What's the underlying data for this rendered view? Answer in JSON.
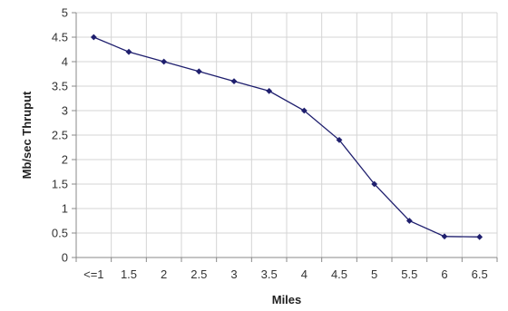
{
  "chart_data": {
    "type": "line",
    "title": "",
    "xlabel": "Miles",
    "ylabel": "Mb/sec Thruput",
    "categories": [
      "<=1",
      "1.5",
      "2",
      "2.5",
      "3",
      "3.5",
      "4",
      "4.5",
      "5",
      "5.5",
      "6",
      "6.5"
    ],
    "series": [
      {
        "values": [
          4.5,
          4.2,
          4.0,
          3.8,
          3.6,
          3.4,
          3.0,
          2.4,
          1.5,
          0.75,
          0.43,
          0.42
        ]
      }
    ],
    "ylim": [
      0,
      5
    ],
    "yticks": [
      "0",
      "0.5",
      "1",
      "1.5",
      "2",
      "2.5",
      "3",
      "3.5",
      "4",
      "4.5",
      "5"
    ],
    "grid": true,
    "legend": "none",
    "colors": {
      "series": "#1f1f6e",
      "grid": "#d4d4d4",
      "axis": "#888888"
    }
  }
}
